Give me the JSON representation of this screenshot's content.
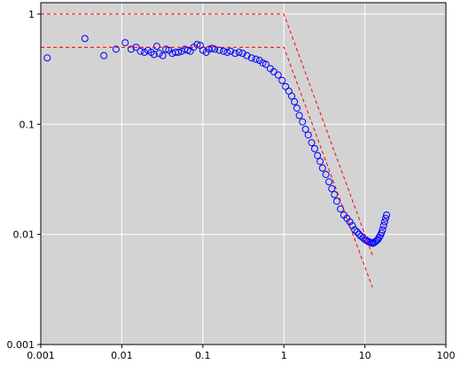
{
  "chart_data": {
    "type": "scatter",
    "xscale": "log",
    "yscale": "log",
    "grid": true,
    "xlim": [
      0.001,
      100
    ],
    "ylim": [
      0.001,
      1.27
    ],
    "xticks": [
      0.001,
      0.01,
      0.1,
      1,
      10,
      100
    ],
    "yticks": [
      0.001,
      0.01,
      0.1,
      1
    ],
    "series": [
      {
        "mode": "markers",
        "color": "#0000ff",
        "x": [
          0.0012,
          0.0035,
          0.006,
          0.0085,
          0.011,
          0.013,
          0.015,
          0.017,
          0.019,
          0.021,
          0.023,
          0.025,
          0.027,
          0.029,
          0.032,
          0.035,
          0.038,
          0.042,
          0.046,
          0.05,
          0.055,
          0.06,
          0.065,
          0.07,
          0.077,
          0.085,
          0.093,
          0.1,
          0.11,
          0.12,
          0.13,
          0.14,
          0.16,
          0.18,
          0.2,
          0.22,
          0.25,
          0.28,
          0.31,
          0.35,
          0.4,
          0.45,
          0.5,
          0.55,
          0.6,
          0.68,
          0.75,
          0.85,
          0.95,
          1.05,
          1.15,
          1.25,
          1.35,
          1.45,
          1.55,
          1.7,
          1.85,
          2.0,
          2.2,
          2.4,
          2.6,
          2.8,
          3.0,
          3.3,
          3.6,
          3.9,
          4.2,
          4.5,
          5,
          5.5,
          6,
          6.5,
          7,
          7.5,
          8,
          8.5,
          9,
          9.5,
          10,
          10.5,
          11,
          11.5,
          12,
          12.5,
          13,
          13.5,
          14,
          14.5,
          15,
          15.5,
          16,
          16.5,
          17,
          17.5,
          18,
          18.5
        ],
        "values": [
          0.4,
          0.6,
          0.42,
          0.48,
          0.55,
          0.48,
          0.5,
          0.46,
          0.45,
          0.47,
          0.45,
          0.43,
          0.51,
          0.44,
          0.42,
          0.48,
          0.47,
          0.44,
          0.45,
          0.45,
          0.46,
          0.48,
          0.47,
          0.46,
          0.5,
          0.53,
          0.52,
          0.47,
          0.45,
          0.48,
          0.49,
          0.48,
          0.47,
          0.46,
          0.45,
          0.46,
          0.44,
          0.45,
          0.44,
          0.42,
          0.4,
          0.39,
          0.38,
          0.36,
          0.35,
          0.32,
          0.3,
          0.28,
          0.25,
          0.22,
          0.2,
          0.18,
          0.16,
          0.14,
          0.12,
          0.105,
          0.09,
          0.08,
          0.068,
          0.06,
          0.052,
          0.046,
          0.04,
          0.035,
          0.03,
          0.026,
          0.023,
          0.02,
          0.017,
          0.015,
          0.014,
          0.013,
          0.012,
          0.011,
          0.0105,
          0.01,
          0.0096,
          0.0093,
          0.009,
          0.0088,
          0.0086,
          0.0085,
          0.0084,
          0.0083,
          0.0084,
          0.0086,
          0.0088,
          0.009,
          0.0094,
          0.0098,
          0.0103,
          0.011,
          0.012,
          0.013,
          0.014,
          0.015
        ]
      },
      {
        "mode": "dashed-line",
        "color": "#ff0000",
        "x": [
          0.001,
          1,
          12.4
        ],
        "values": [
          1,
          1,
          0.0065
        ]
      },
      {
        "mode": "dashed-line",
        "color": "#ff0000",
        "x": [
          0.001,
          1,
          12.4
        ],
        "values": [
          0.5,
          0.5,
          0.0033
        ]
      }
    ]
  }
}
